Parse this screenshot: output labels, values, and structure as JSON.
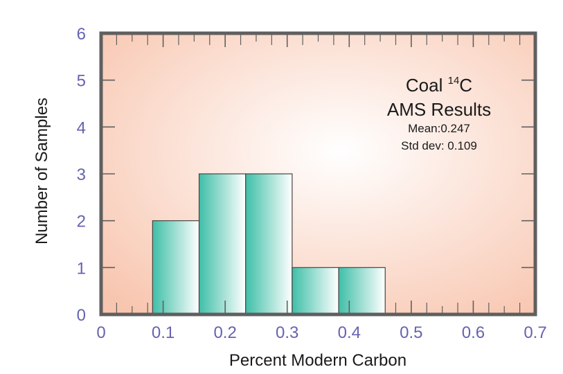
{
  "chart_data": {
    "type": "bar",
    "histogram": true,
    "bin_edges": [
      0.083,
      0.158,
      0.233,
      0.308,
      0.383,
      0.458
    ],
    "values": [
      2,
      3,
      3,
      1,
      1
    ],
    "xlabel": "Percent Modern Carbon",
    "ylabel": "Number of Samples",
    "xlim": [
      0,
      0.7
    ],
    "ylim": [
      0,
      6
    ],
    "xticks": [
      "0",
      "0.1",
      "0.2",
      "0.3",
      "0.4",
      "0.5",
      "0.6",
      "0.7"
    ],
    "yticks": [
      "0",
      "1",
      "2",
      "3",
      "4",
      "5",
      "6"
    ],
    "annotation": {
      "title_prefix": "Coal ",
      "title_superscript": "14",
      "title_suffix": "C",
      "subtitle": "AMS Results",
      "mean": "Mean:0.247",
      "std": "Std dev: 0.109"
    },
    "grid": false,
    "colors": {
      "bar_left": "#3fbfa8",
      "bar_right": "#ffffff",
      "background_center": "#ffffff",
      "background_edge": "#f8c5ae",
      "frame": "#5f5f5f",
      "tick_label": "#6663b0"
    }
  }
}
